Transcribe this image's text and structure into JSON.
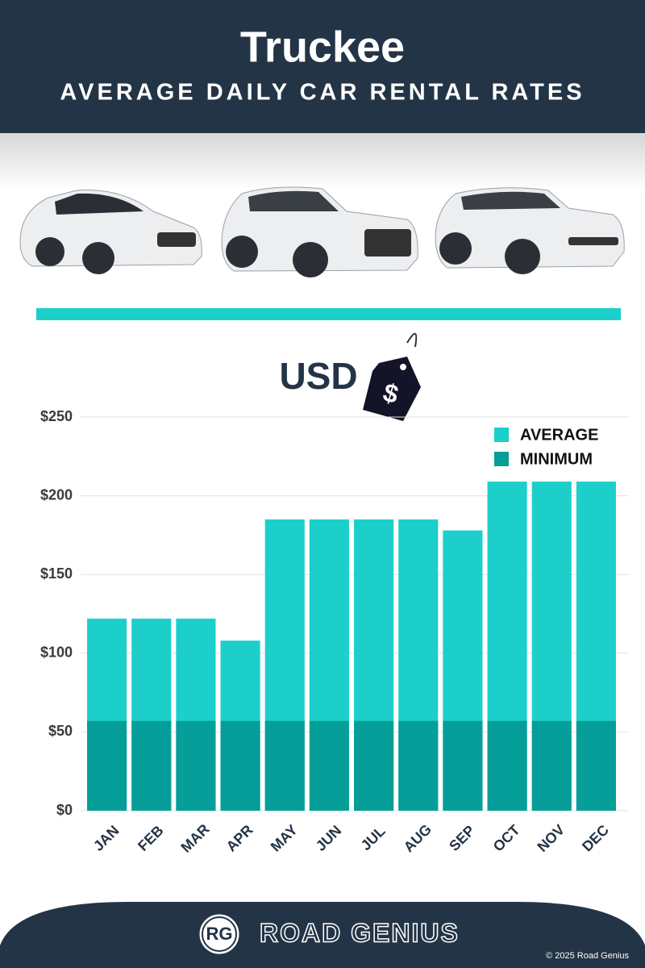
{
  "chart_data": {
    "type": "bar",
    "title": "Truckee",
    "subtitle": "AVERAGE DAILY CAR RENTAL RATES",
    "currency_label": "USD",
    "tag_symbol": "$",
    "categories": [
      "JAN",
      "FEB",
      "MAR",
      "APR",
      "MAY",
      "JUN",
      "JUL",
      "AUG",
      "SEP",
      "OCT",
      "NOV",
      "DEC"
    ],
    "series": [
      {
        "name": "AVERAGE",
        "color": "#1ccfcb",
        "values": [
          122,
          122,
          122,
          108,
          185,
          185,
          185,
          185,
          178,
          209,
          209,
          209
        ]
      },
      {
        "name": "MINIMUM",
        "color": "#069e98",
        "values": [
          57,
          57,
          57,
          57,
          57,
          57,
          57,
          57,
          57,
          57,
          57,
          57
        ]
      }
    ],
    "ylim": [
      0,
      250
    ],
    "yticks": [
      {
        "value": 0,
        "label": "$0"
      },
      {
        "value": 50,
        "label": "$50"
      },
      {
        "value": 100,
        "label": "$100"
      },
      {
        "value": 150,
        "label": "$150"
      },
      {
        "value": 200,
        "label": "$200"
      },
      {
        "value": 250,
        "label": "$250"
      }
    ],
    "grid": true,
    "legend_position": "top-right",
    "brand": {
      "logo": "RG",
      "name": "ROAD GENIUS",
      "copyright": "© 2025 Road Genius"
    }
  }
}
